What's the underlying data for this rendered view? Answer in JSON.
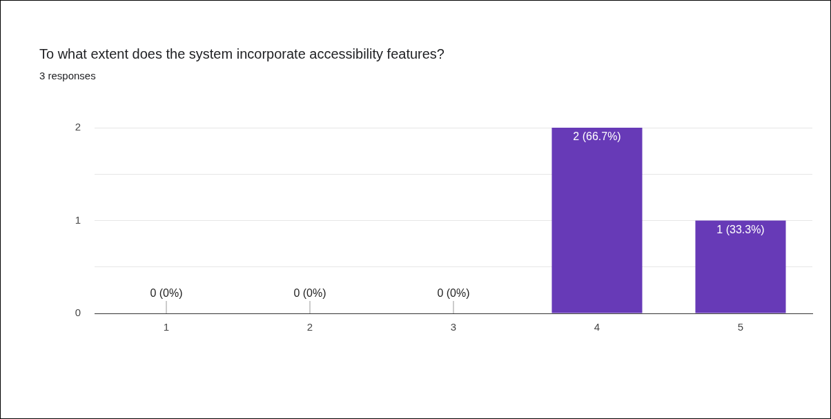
{
  "chart_data": {
    "type": "bar",
    "title": "To what extent does the system incorporate accessibility features?",
    "subtitle": "3 responses",
    "categories": [
      "1",
      "2",
      "3",
      "4",
      "5"
    ],
    "values": [
      0,
      0,
      0,
      2,
      1
    ],
    "value_labels": [
      "0 (0%)",
      "0 (0%)",
      "0 (0%)",
      "2 (66.7%)",
      "1 (33.3%)"
    ],
    "color": "#673ab7",
    "ylim": [
      0,
      2
    ],
    "yticks": [
      0,
      {
        "value": 0.5,
        "label": null
      },
      1,
      {
        "value": 1.5,
        "label": null
      },
      2
    ],
    "grid": "y",
    "legend": false
  }
}
